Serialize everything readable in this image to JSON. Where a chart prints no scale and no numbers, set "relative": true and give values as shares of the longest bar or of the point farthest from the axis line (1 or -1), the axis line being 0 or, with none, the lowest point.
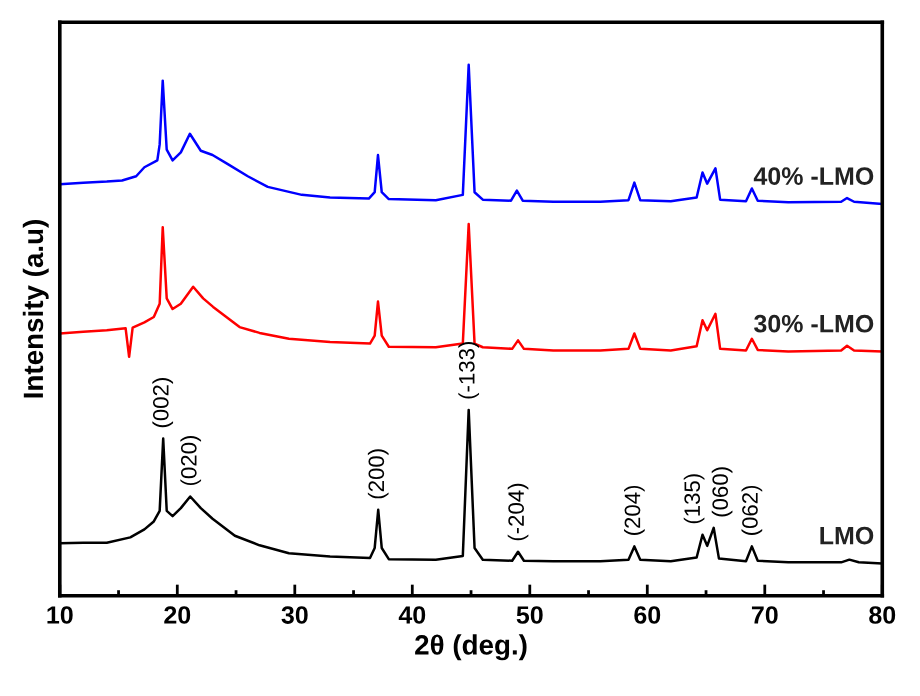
{
  "chart_data": {
    "type": "line",
    "relative": true,
    "xlabel": "2θ (deg.)",
    "ylabel": "Intensity (a.u)",
    "xlim": [
      10,
      80
    ],
    "xticks": [
      10,
      20,
      30,
      40,
      50,
      60,
      70,
      80
    ],
    "legend": false,
    "grid": false,
    "marker": "none",
    "line_style": "solid",
    "series": [
      {
        "name": "40% -LMO",
        "color": "#0000ff",
        "x": [
          10,
          12,
          14,
          15.3,
          16.5,
          17.2,
          18.3,
          18.5,
          18.76,
          19.1,
          19.6,
          20.3,
          21.07,
          22.0,
          23.0,
          24.3,
          26,
          27.7,
          30.6,
          33,
          36.3,
          36.8,
          37.08,
          37.4,
          38,
          42,
          44.3,
          44.8,
          45.3,
          46,
          48.4,
          48.9,
          49.4,
          52,
          56,
          58.4,
          58.9,
          59.4,
          62,
          64.2,
          64.7,
          65.1,
          65.8,
          66.2,
          68.4,
          68.9,
          69.4,
          72,
          76.5,
          77.0,
          77.6,
          80
        ],
        "values": [
          0.775,
          0.778,
          0.78,
          0.782,
          0.79,
          0.807,
          0.82,
          0.85,
          0.97,
          0.84,
          0.82,
          0.835,
          0.87,
          0.838,
          0.83,
          0.813,
          0.79,
          0.77,
          0.755,
          0.75,
          0.748,
          0.76,
          0.83,
          0.76,
          0.747,
          0.745,
          0.755,
          1,
          0.76,
          0.746,
          0.744,
          0.763,
          0.744,
          0.742,
          0.742,
          0.745,
          0.778,
          0.745,
          0.743,
          0.75,
          0.797,
          0.776,
          0.805,
          0.746,
          0.743,
          0.767,
          0.744,
          0.741,
          0.742,
          0.749,
          0.742,
          0.738
        ]
      },
      {
        "name": "30% -LMO",
        "color": "#ff0000",
        "x": [
          10,
          12,
          14,
          15.6,
          15.9,
          16.2,
          17.2,
          18.0,
          18.5,
          18.76,
          19.1,
          19.6,
          20.3,
          21.35,
          22.2,
          23.05,
          25.3,
          27,
          29.5,
          33,
          36.4,
          36.8,
          37.08,
          37.4,
          38,
          42,
          44.3,
          44.8,
          45.3,
          46,
          48.5,
          49.0,
          49.5,
          52,
          56,
          58.4,
          58.9,
          59.4,
          62,
          64.2,
          64.7,
          65.1,
          65.8,
          66.2,
          68.4,
          68.9,
          69.4,
          72,
          76.5,
          77.0,
          77.6,
          80
        ],
        "values": [
          0.494,
          0.497,
          0.5,
          0.504,
          0.45,
          0.505,
          0.515,
          0.525,
          0.55,
          0.694,
          0.56,
          0.54,
          0.55,
          0.582,
          0.56,
          0.544,
          0.506,
          0.495,
          0.484,
          0.478,
          0.475,
          0.49,
          0.554,
          0.49,
          0.469,
          0.468,
          0.475,
          0.7,
          0.475,
          0.468,
          0.465,
          0.481,
          0.465,
          0.462,
          0.462,
          0.465,
          0.494,
          0.465,
          0.462,
          0.47,
          0.519,
          0.5,
          0.531,
          0.465,
          0.462,
          0.484,
          0.463,
          0.46,
          0.462,
          0.471,
          0.462,
          0.46
        ]
      },
      {
        "name": "LMO",
        "color": "#000000",
        "x": [
          10,
          12,
          14,
          16,
          17.2,
          18.0,
          18.5,
          18.8,
          19.1,
          19.6,
          20.3,
          21.1,
          22.0,
          23.0,
          24.9,
          27,
          29.5,
          33,
          36.4,
          36.8,
          37.1,
          37.4,
          38,
          42,
          44.3,
          44.8,
          45.3,
          46,
          48.5,
          49.0,
          49.5,
          52,
          56,
          58.4,
          58.9,
          59.4,
          62,
          64.2,
          64.7,
          65.1,
          65.65,
          66.1,
          68.4,
          68.9,
          69.4,
          72,
          76.5,
          77.2,
          78,
          80
        ],
        "values": [
          0.099,
          0.1,
          0.1,
          0.11,
          0.125,
          0.14,
          0.16,
          0.296,
          0.16,
          0.15,
          0.165,
          0.187,
          0.165,
          0.145,
          0.113,
          0.095,
          0.08,
          0.074,
          0.071,
          0.09,
          0.162,
          0.09,
          0.069,
          0.068,
          0.075,
          0.35,
          0.09,
          0.068,
          0.066,
          0.083,
          0.066,
          0.065,
          0.065,
          0.068,
          0.093,
          0.068,
          0.065,
          0.072,
          0.115,
          0.094,
          0.128,
          0.07,
          0.065,
          0.093,
          0.066,
          0.063,
          0.063,
          0.068,
          0.063,
          0.061
        ]
      }
    ],
    "annotations": [
      {
        "text": "(002)",
        "x": 18.8,
        "y": 0.296
      },
      {
        "text": "(020)",
        "x": 21.1,
        "y": 0.187
      },
      {
        "text": "(200)",
        "x": 37.1,
        "y": 0.162
      },
      {
        "text": "(-133)",
        "x": 44.8,
        "y": 0.35
      },
      {
        "text": "(-204)",
        "x": 49.0,
        "y": 0.083
      },
      {
        "text": "(204)",
        "x": 58.9,
        "y": 0.093
      },
      {
        "text": "(135)",
        "x": 64.7,
        "y": 0.115
      },
      {
        "text": "(060)",
        "x": 65.65,
        "y": 0.128
      },
      {
        "text": "(062)",
        "x": 68.9,
        "y": 0.093
      }
    ]
  }
}
